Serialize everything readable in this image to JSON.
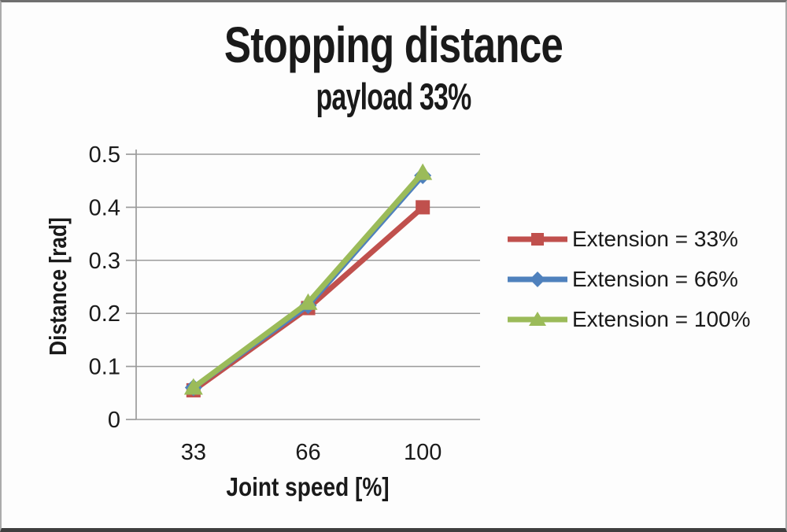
{
  "chart_data": {
    "type": "line",
    "title": "Stopping distance",
    "subtitle": "payload 33%",
    "xlabel": "Joint speed [%]",
    "ylabel": "Distance [rad]",
    "categories": [
      "33",
      "66",
      "100"
    ],
    "yticks": [
      "0",
      "0.1",
      "0.2",
      "0.3",
      "0.4",
      "0.5"
    ],
    "ylim": [
      0,
      0.5
    ],
    "grid": "horizontal",
    "legend_position": "right",
    "grid_color": "#9B9B9B",
    "text_color": "#1A1A1A",
    "series": [
      {
        "name": "Extension = 33%",
        "color": "#C0504D",
        "marker": "square",
        "values": [
          0.055,
          0.21,
          0.4
        ]
      },
      {
        "name": "Extension = 66%",
        "color": "#4F81BD",
        "marker": "diamond",
        "values": [
          0.06,
          0.215,
          0.46
        ]
      },
      {
        "name": "Extension = 100%",
        "color": "#9BBB59",
        "marker": "triangle",
        "values": [
          0.06,
          0.22,
          0.465
        ]
      }
    ]
  }
}
